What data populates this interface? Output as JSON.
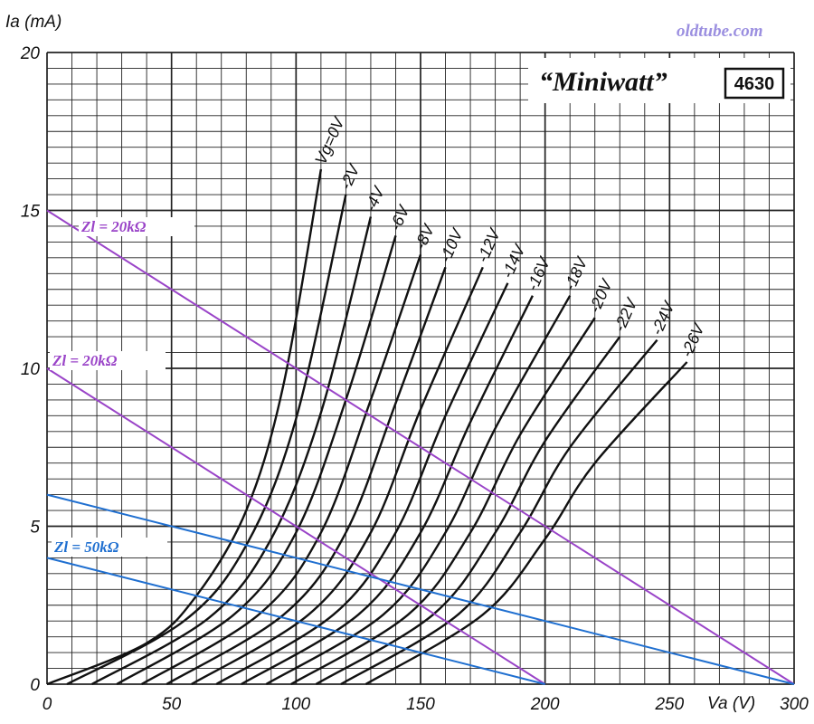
{
  "watermark": "oldtube.com",
  "brand": "“Miniwatt”",
  "model": "4630",
  "colors": {
    "grid": "#222222",
    "curve": "#111111",
    "load_purple": "#9a44c8",
    "load_blue": "#1f6fd0"
  },
  "chart_data": {
    "type": "line",
    "xlabel": "Va (V)",
    "ylabel": "Ia (mA)",
    "xlim": [
      0,
      300
    ],
    "ylim": [
      0,
      20
    ],
    "x_ticks": [
      "0",
      "50",
      "100",
      "150",
      "200",
      "250",
      "300"
    ],
    "y_ticks": [
      "0",
      "5",
      "10",
      "15",
      "20"
    ],
    "grid": true,
    "series": [
      {
        "name": "Vg=0V",
        "points": [
          [
            0,
            0
          ],
          [
            40,
            1.3
          ],
          [
            60,
            2.8
          ],
          [
            80,
            5.5
          ],
          [
            95,
            9.5
          ],
          [
            110,
            16.3
          ]
        ]
      },
      {
        "name": "-2V",
        "points": [
          [
            8,
            0
          ],
          [
            55,
            2.0
          ],
          [
            80,
            4.4
          ],
          [
            100,
            8.4
          ],
          [
            120,
            15.5
          ]
        ]
      },
      {
        "name": "-4V",
        "points": [
          [
            18,
            0
          ],
          [
            65,
            2.1
          ],
          [
            90,
            4.6
          ],
          [
            110,
            8.6
          ],
          [
            130,
            14.8
          ]
        ]
      },
      {
        "name": "-6V",
        "points": [
          [
            28,
            0
          ],
          [
            75,
            2.2
          ],
          [
            100,
            4.8
          ],
          [
            120,
            9.0
          ],
          [
            140,
            14.2
          ]
        ]
      },
      {
        "name": "-8V",
        "points": [
          [
            38,
            0
          ],
          [
            85,
            2.2
          ],
          [
            110,
            4.8
          ],
          [
            130,
            9.0
          ],
          [
            150,
            13.6
          ]
        ]
      },
      {
        "name": "-10V",
        "points": [
          [
            48,
            0
          ],
          [
            95,
            2.2
          ],
          [
            120,
            4.8
          ],
          [
            140,
            8.9
          ],
          [
            160,
            13.2
          ]
        ]
      },
      {
        "name": "-12V",
        "points": [
          [
            58,
            0
          ],
          [
            105,
            2.2
          ],
          [
            130,
            4.8
          ],
          [
            150,
            8.7
          ],
          [
            175,
            13.2
          ]
        ]
      },
      {
        "name": "-14V",
        "points": [
          [
            68,
            0
          ],
          [
            115,
            2.2
          ],
          [
            140,
            4.8
          ],
          [
            160,
            8.5
          ],
          [
            185,
            12.7
          ]
        ]
      },
      {
        "name": "-16V",
        "points": [
          [
            78,
            0
          ],
          [
            125,
            2.2
          ],
          [
            150,
            4.8
          ],
          [
            170,
            8.3
          ],
          [
            195,
            12.3
          ]
        ]
      },
      {
        "name": "-18V",
        "points": [
          [
            88,
            0
          ],
          [
            135,
            2.2
          ],
          [
            160,
            4.8
          ],
          [
            180,
            8.1
          ],
          [
            210,
            12.3
          ]
        ]
      },
      {
        "name": "-20V",
        "points": [
          [
            98,
            0
          ],
          [
            145,
            2.2
          ],
          [
            170,
            4.8
          ],
          [
            190,
            7.9
          ],
          [
            220,
            11.6
          ]
        ]
      },
      {
        "name": "-22V",
        "points": [
          [
            108,
            0
          ],
          [
            155,
            2.2
          ],
          [
            180,
            4.8
          ],
          [
            200,
            7.7
          ],
          [
            230,
            11.0
          ]
        ]
      },
      {
        "name": "-24V",
        "points": [
          [
            118,
            0
          ],
          [
            165,
            2.2
          ],
          [
            190,
            4.8
          ],
          [
            210,
            7.5
          ],
          [
            245,
            10.9
          ]
        ]
      },
      {
        "name": "-26V",
        "points": [
          [
            128,
            0
          ],
          [
            175,
            2.2
          ],
          [
            200,
            4.6
          ],
          [
            220,
            7.0
          ],
          [
            257,
            10.2
          ]
        ]
      }
    ],
    "load_lines": [
      {
        "name": "Zl = 20kΩ",
        "points": [
          [
            0,
            15
          ],
          [
            300,
            0
          ]
        ],
        "color": "purple"
      },
      {
        "name": "Zl = 20kΩ",
        "points": [
          [
            0,
            10
          ],
          [
            200,
            0
          ]
        ],
        "color": "purple"
      },
      {
        "name": "Zl = 50kΩ",
        "points": [
          [
            0,
            6
          ],
          [
            300,
            0
          ]
        ],
        "color": "blue"
      },
      {
        "name": "",
        "points": [
          [
            0,
            4
          ],
          [
            200,
            0
          ]
        ],
        "color": "blue"
      }
    ]
  }
}
